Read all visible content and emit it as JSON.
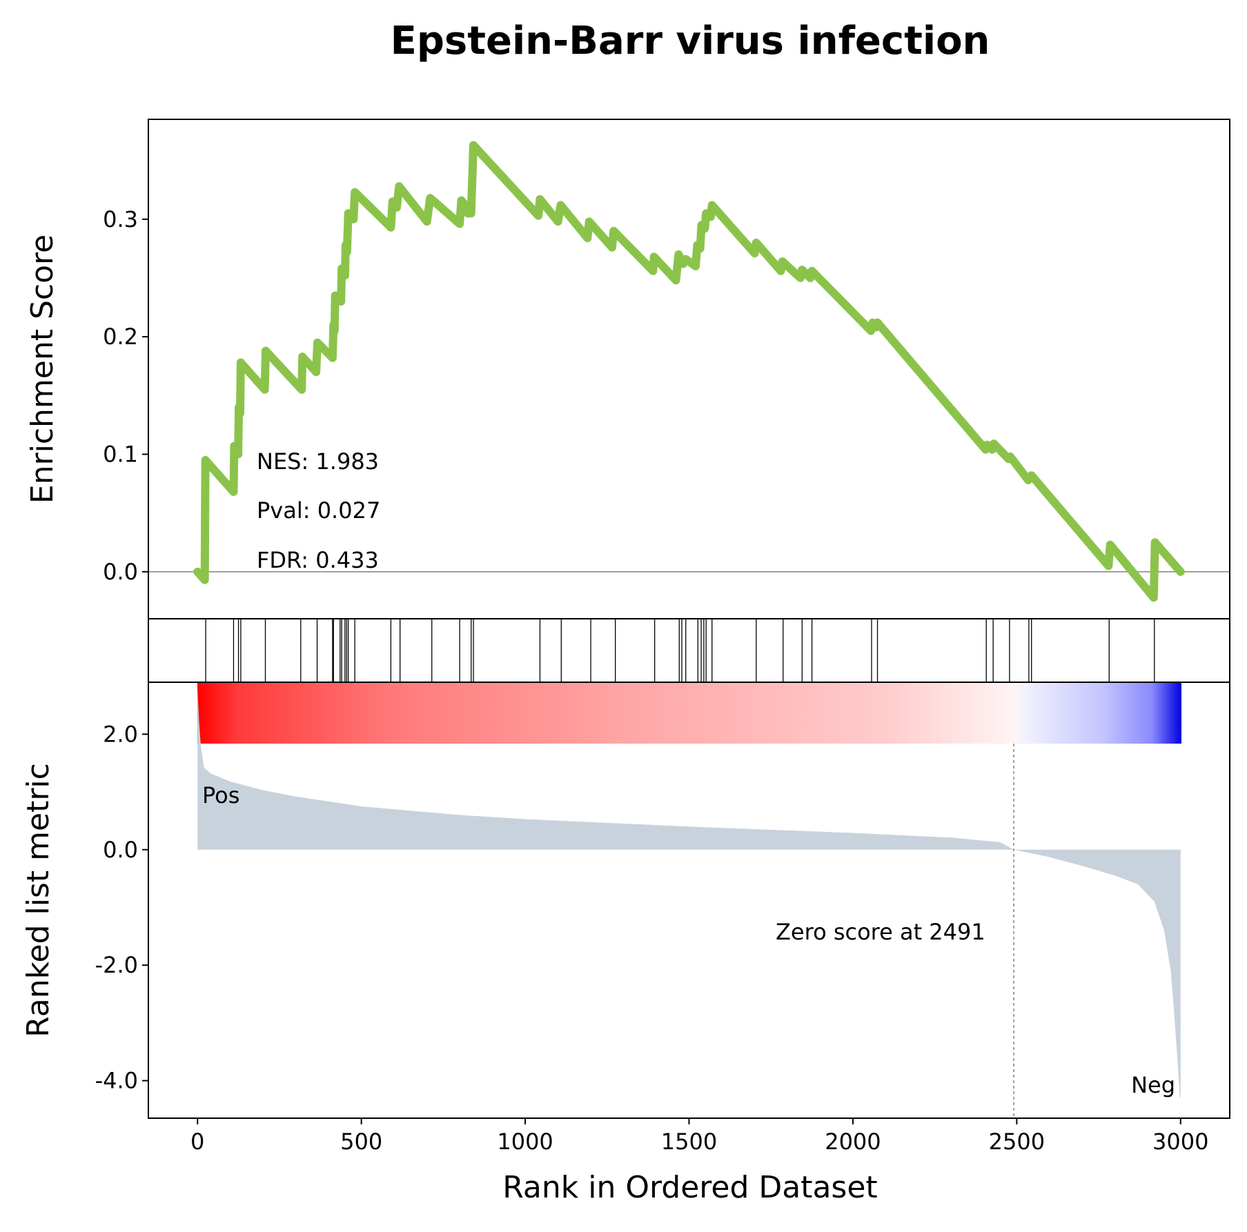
{
  "chart_data": {
    "type": "line",
    "title": "Epstein-Barr virus infection",
    "xlabel": "Rank in Ordered Dataset",
    "xlim": [
      -150,
      3150
    ],
    "x_ticks": [
      0,
      500,
      1000,
      1500,
      2000,
      2500,
      3000
    ],
    "enrichment": {
      "ylabel": "Enrichment Score",
      "ylim": [
        -0.04,
        0.385
      ],
      "y_ticks": [
        0.0,
        0.1,
        0.2,
        0.3
      ],
      "y_tick_labels": [
        "0.0",
        "0.1",
        "0.2",
        "0.3"
      ],
      "line_color": "#8bc34a",
      "points": [
        [
          0,
          0.0
        ],
        [
          22,
          -0.007
        ],
        [
          24,
          0.095
        ],
        [
          110,
          0.068
        ],
        [
          112,
          0.107
        ],
        [
          124,
          0.1
        ],
        [
          126,
          0.14
        ],
        [
          130,
          0.135
        ],
        [
          132,
          0.178
        ],
        [
          205,
          0.155
        ],
        [
          208,
          0.188
        ],
        [
          318,
          0.155
        ],
        [
          320,
          0.183
        ],
        [
          362,
          0.17
        ],
        [
          366,
          0.195
        ],
        [
          412,
          0.182
        ],
        [
          415,
          0.21
        ],
        [
          418,
          0.205
        ],
        [
          420,
          0.235
        ],
        [
          438,
          0.23
        ],
        [
          440,
          0.258
        ],
        [
          450,
          0.252
        ],
        [
          452,
          0.278
        ],
        [
          456,
          0.272
        ],
        [
          460,
          0.305
        ],
        [
          476,
          0.3
        ],
        [
          480,
          0.323
        ],
        [
          590,
          0.293
        ],
        [
          595,
          0.315
        ],
        [
          608,
          0.31
        ],
        [
          615,
          0.328
        ],
        [
          700,
          0.298
        ],
        [
          710,
          0.318
        ],
        [
          800,
          0.296
        ],
        [
          805,
          0.316
        ],
        [
          820,
          0.311
        ],
        [
          825,
          0.305
        ],
        [
          835,
          0.305
        ],
        [
          838,
          0.332
        ],
        [
          842,
          0.363
        ],
        [
          1040,
          0.303
        ],
        [
          1045,
          0.317
        ],
        [
          1100,
          0.298
        ],
        [
          1108,
          0.312
        ],
        [
          1190,
          0.284
        ],
        [
          1195,
          0.298
        ],
        [
          1265,
          0.276
        ],
        [
          1270,
          0.29
        ],
        [
          1390,
          0.256
        ],
        [
          1393,
          0.268
        ],
        [
          1460,
          0.248
        ],
        [
          1468,
          0.27
        ],
        [
          1482,
          0.262
        ],
        [
          1490,
          0.266
        ],
        [
          1520,
          0.26
        ],
        [
          1525,
          0.278
        ],
        [
          1534,
          0.275
        ],
        [
          1538,
          0.295
        ],
        [
          1548,
          0.292
        ],
        [
          1552,
          0.305
        ],
        [
          1566,
          0.302
        ],
        [
          1570,
          0.312
        ],
        [
          1700,
          0.271
        ],
        [
          1705,
          0.28
        ],
        [
          1780,
          0.256
        ],
        [
          1785,
          0.264
        ],
        [
          1840,
          0.25
        ],
        [
          1845,
          0.257
        ],
        [
          1870,
          0.25
        ],
        [
          1875,
          0.256
        ],
        [
          2055,
          0.205
        ],
        [
          2060,
          0.212
        ],
        [
          2070,
          0.208
        ],
        [
          2075,
          0.212
        ],
        [
          2405,
          0.104
        ],
        [
          2410,
          0.108
        ],
        [
          2425,
          0.104
        ],
        [
          2430,
          0.109
        ],
        [
          2475,
          0.096
        ],
        [
          2480,
          0.098
        ],
        [
          2535,
          0.078
        ],
        [
          2545,
          0.082
        ],
        [
          2780,
          0.005
        ],
        [
          2785,
          0.023
        ],
        [
          2918,
          -0.022
        ],
        [
          2922,
          0.025
        ],
        [
          3000,
          0.0
        ]
      ],
      "annotations": [
        "NES: 1.983",
        "Pval: 0.027",
        "FDR: 0.433"
      ]
    },
    "hit_positions": [
      25,
      110,
      125,
      132,
      207,
      315,
      365,
      412,
      415,
      435,
      440,
      450,
      455,
      460,
      480,
      590,
      618,
      715,
      800,
      835,
      842,
      1045,
      1110,
      1200,
      1275,
      1395,
      1470,
      1478,
      1490,
      1527,
      1537,
      1545,
      1552,
      1570,
      1705,
      1787,
      1845,
      1875,
      2057,
      2075,
      2407,
      2428,
      2478,
      2537,
      2545,
      2782,
      2920
    ],
    "ranked_metric": {
      "ylabel": "Ranked list metric",
      "ylim": [
        -4.65,
        2.9
      ],
      "y_ticks": [
        2.0,
        0.0,
        -2.0,
        -4.0
      ],
      "y_tick_labels": [
        "2.0",
        "0.0",
        "-2.0",
        "-4.0"
      ],
      "fill_color": "#c8d2dc",
      "points": [
        [
          0,
          2.8
        ],
        [
          5,
          2.2
        ],
        [
          10,
          1.8
        ],
        [
          20,
          1.42
        ],
        [
          40,
          1.32
        ],
        [
          100,
          1.18
        ],
        [
          200,
          1.03
        ],
        [
          300,
          0.92
        ],
        [
          500,
          0.75
        ],
        [
          800,
          0.6
        ],
        [
          1000,
          0.53
        ],
        [
          1500,
          0.4
        ],
        [
          2000,
          0.29
        ],
        [
          2300,
          0.21
        ],
        [
          2450,
          0.13
        ],
        [
          2491,
          0.0
        ],
        [
          2600,
          -0.13
        ],
        [
          2700,
          -0.28
        ],
        [
          2800,
          -0.45
        ],
        [
          2870,
          -0.6
        ],
        [
          2920,
          -0.9
        ],
        [
          2950,
          -1.4
        ],
        [
          2970,
          -2.1
        ],
        [
          2980,
          -2.8
        ],
        [
          2990,
          -3.6
        ],
        [
          2998,
          -4.3
        ],
        [
          3000,
          -4.3
        ]
      ],
      "zero_rank": 2491,
      "zero_label": "Zero score at 2491",
      "pos_label": "Pos",
      "neg_label": "Neg",
      "pos_color": "#ff0000",
      "neg_color": "#0000ff"
    }
  }
}
